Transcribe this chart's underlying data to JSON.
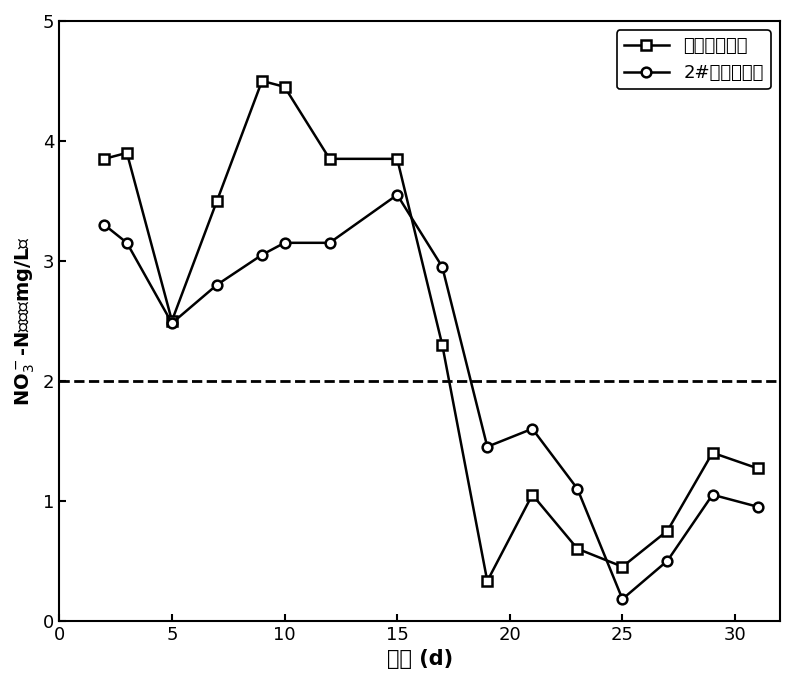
{
  "series1_label": "人工湿地出水",
  "series2_label": "2#生态塘出水",
  "series1_x": [
    2,
    3,
    5,
    7,
    9,
    10,
    12,
    15,
    17,
    19,
    21,
    23,
    25,
    27,
    29,
    31
  ],
  "series1_y": [
    3.85,
    3.9,
    2.5,
    3.5,
    4.5,
    4.45,
    3.85,
    3.85,
    2.3,
    0.33,
    1.05,
    0.6,
    0.45,
    0.75,
    1.4,
    1.27
  ],
  "series2_x": [
    2,
    3,
    5,
    7,
    9,
    10,
    12,
    15,
    17,
    19,
    21,
    23,
    25,
    27,
    29,
    31
  ],
  "series2_y": [
    3.3,
    3.15,
    2.48,
    2.8,
    3.05,
    3.15,
    3.15,
    3.55,
    2.95,
    1.45,
    1.6,
    1.1,
    0.18,
    0.5,
    1.05,
    0.95
  ],
  "dashed_y": 2.0,
  "xlabel": "时间 (d)",
  "ylim": [
    0,
    5
  ],
  "xlim": [
    0,
    32
  ],
  "yticks": [
    0,
    1,
    2,
    3,
    4,
    5
  ],
  "xticks": [
    0,
    5,
    10,
    15,
    20,
    25,
    30
  ],
  "line_color": "#000000",
  "marker_size": 7,
  "linewidth": 1.8
}
